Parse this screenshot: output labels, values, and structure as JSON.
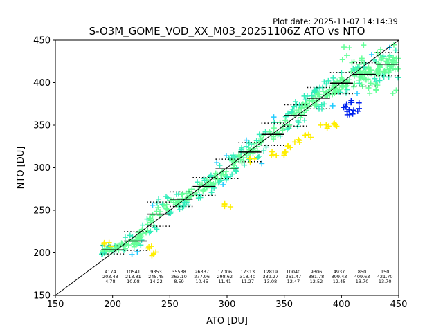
{
  "plot_date": "Plot date: 2025-11-07 14:14:39",
  "chart_data": {
    "type": "scatter",
    "title": "S-O3M_GOME_VOD_XX_M03_20251106Z ATO vs NTO",
    "xlabel": "ATO [DU]",
    "ylabel": "NTO [DU]",
    "xlim": [
      150,
      450
    ],
    "ylim": [
      150,
      450
    ],
    "xticks": [
      150,
      200,
      250,
      300,
      350,
      400,
      450
    ],
    "yticks": [
      150,
      200,
      250,
      300,
      350,
      400,
      450
    ],
    "marker": "+",
    "grid": false,
    "reference_line": "y = x",
    "colors": {
      "blue": "#0022ee",
      "cyan": "#22ccff",
      "aqua": "#33eebb",
      "green": "#66ff99",
      "yellow": "#ffee00",
      "line": "#000000"
    },
    "bin_stats": [
      {
        "x": 200,
        "count": "4174",
        "mean": "203.43",
        "std": "4.78"
      },
      {
        "x": 220,
        "count": "10541",
        "mean": "213.81",
        "std": "10.98"
      },
      {
        "x": 240,
        "count": "9353",
        "mean": "245.45",
        "std": "14.22"
      },
      {
        "x": 260,
        "count": "35538",
        "mean": "263.10",
        "std": "8.59"
      },
      {
        "x": 280,
        "count": "26337",
        "mean": "277.96",
        "std": "10.45"
      },
      {
        "x": 300,
        "count": "17006",
        "mean": "298.62",
        "std": "11.41"
      },
      {
        "x": 320,
        "count": "17313",
        "mean": "318.40",
        "std": "11.27"
      },
      {
        "x": 340,
        "count": "12819",
        "mean": "339.27",
        "std": "13.08"
      },
      {
        "x": 360,
        "count": "10040",
        "mean": "361.47",
        "std": "12.47"
      },
      {
        "x": 380,
        "count": "9306",
        "mean": "381.78",
        "std": "12.52"
      },
      {
        "x": 400,
        "count": "4937",
        "mean": "399.43",
        "std": "12.45"
      },
      {
        "x": 420,
        "count": "850",
        "mean": "409.63",
        "std": "13.70"
      },
      {
        "x": 440,
        "count": "150",
        "mean": "421.70",
        "std": "13.70"
      }
    ]
  }
}
